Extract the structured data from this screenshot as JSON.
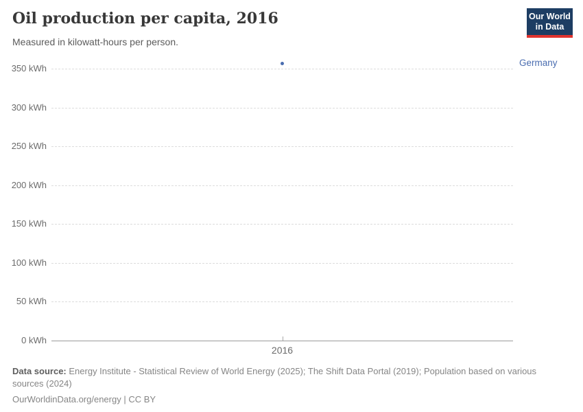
{
  "header": {
    "title": "Oil production per capita, 2016",
    "subtitle": "Measured in kilowatt-hours per person.",
    "logo_line1": "Our World",
    "logo_line2": "in Data"
  },
  "colors": {
    "series_blue": "#4a6db0",
    "logo_navy": "#1d3d63",
    "logo_red": "#e0332e",
    "gridline": "#dcdcdc",
    "axis": "#999999",
    "tick_text": "#6b6b6b"
  },
  "chart_data": {
    "type": "scatter",
    "title": "Oil production per capita, 2016",
    "subtitle": "Measured in kilowatt-hours per person.",
    "xlabel": "",
    "ylabel": "kWh",
    "xlim": [
      2015.5,
      2016.5
    ],
    "ylim": [
      0,
      350
    ],
    "grid": "horizontal-dashed",
    "legend_position": "entity-label-right",
    "xticks": [
      {
        "v": 2016,
        "label": "2016"
      }
    ],
    "yticks": [
      {
        "v": 0,
        "label": "0 kWh"
      },
      {
        "v": 50,
        "label": "50 kWh"
      },
      {
        "v": 100,
        "label": "100 kWh"
      },
      {
        "v": 150,
        "label": "150 kWh"
      },
      {
        "v": 200,
        "label": "200 kWh"
      },
      {
        "v": 250,
        "label": "250 kWh"
      },
      {
        "v": 300,
        "label": "300 kWh"
      },
      {
        "v": 350,
        "label": "350 kWh"
      }
    ],
    "series": [
      {
        "name": "Germany",
        "color": "#4a6db0",
        "points": [
          {
            "x": 2016,
            "y": 357
          }
        ]
      }
    ]
  },
  "footer": {
    "source_label": "Data source:",
    "source_text": "Energy Institute - Statistical Review of World Energy (2025); The Shift Data Portal (2019); Population based on various sources (2024)",
    "license": "OurWorldinData.org/energy | CC BY"
  }
}
